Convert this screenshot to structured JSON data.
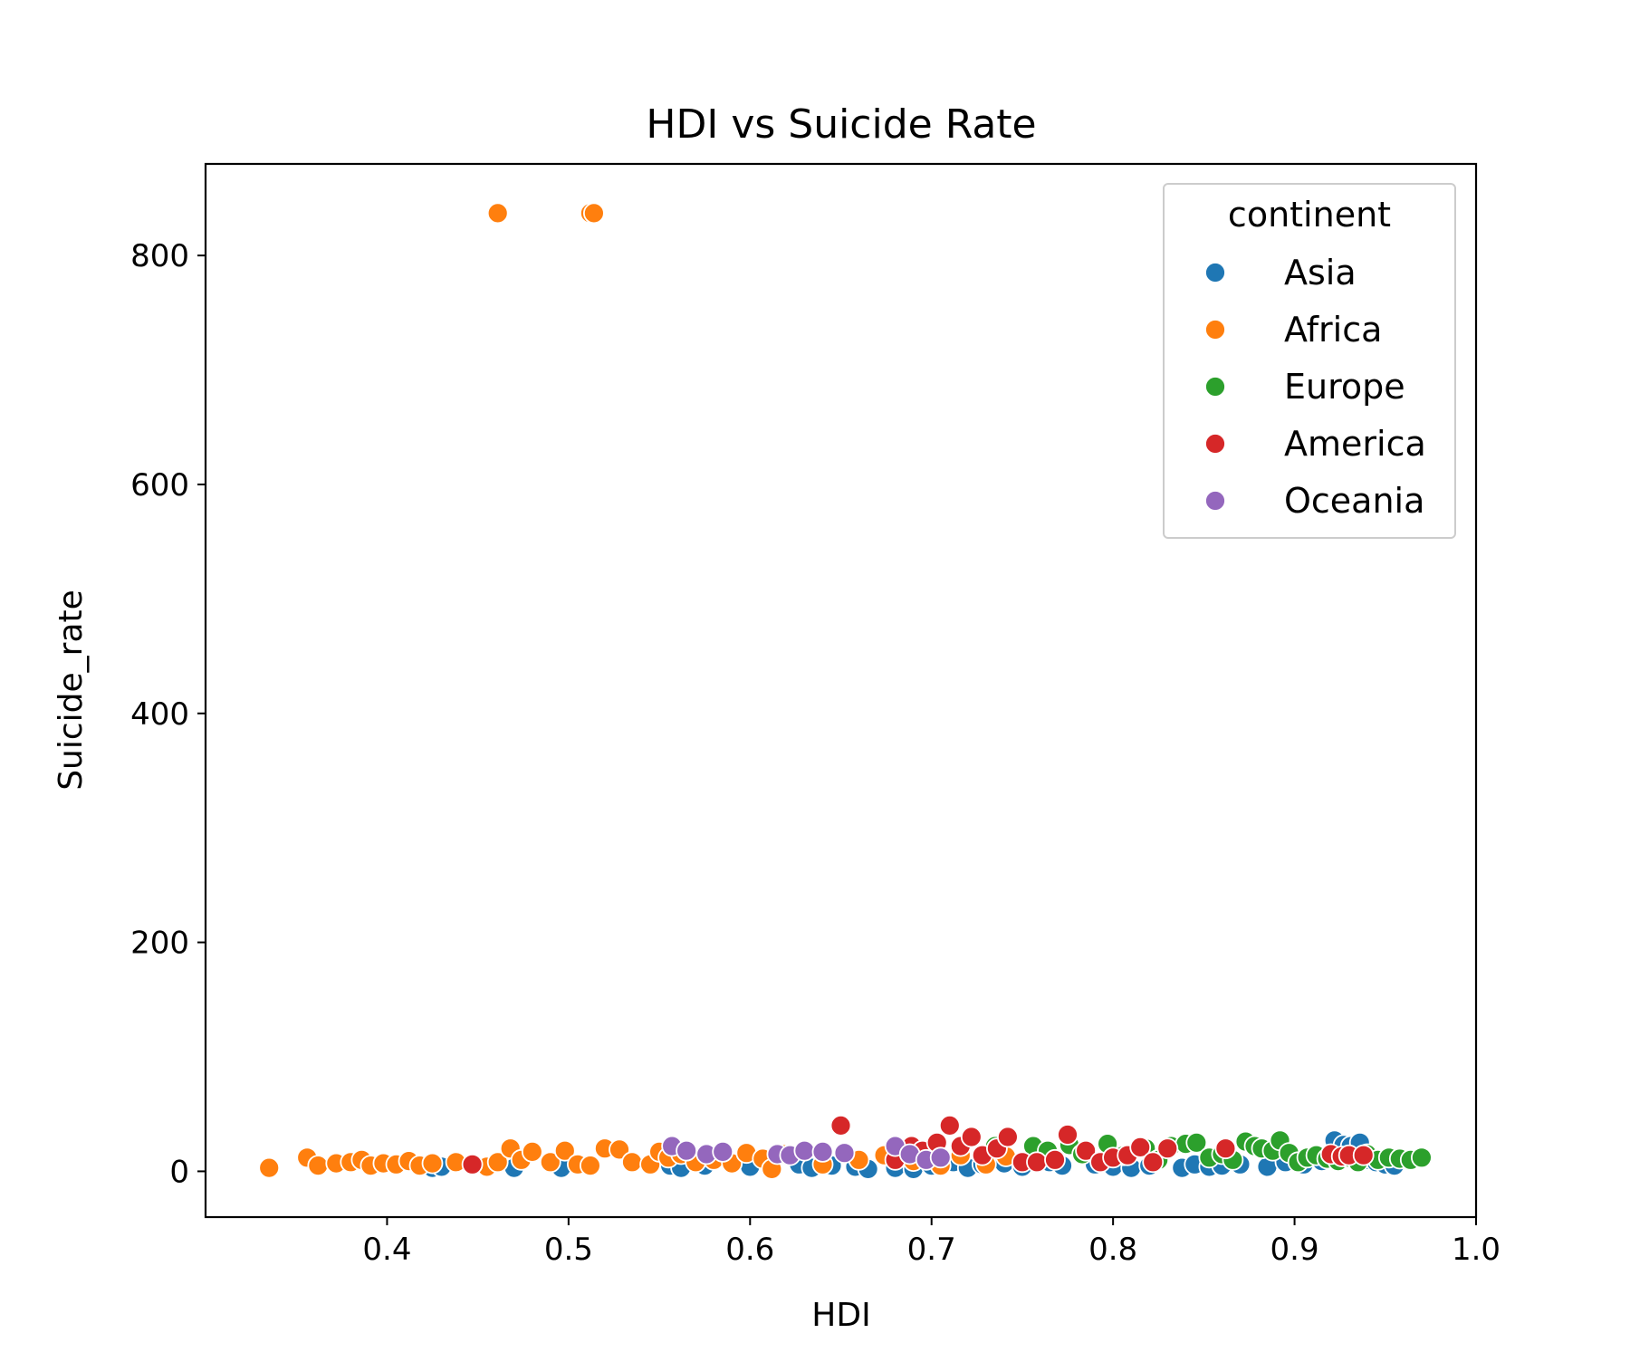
{
  "chart_data": {
    "type": "scatter",
    "title": "HDI vs Suicide Rate",
    "xlabel": "HDI",
    "ylabel": "Suicide_rate",
    "xlim": [
      0.3,
      1.0
    ],
    "ylim": [
      -40,
      880
    ],
    "xticks": [
      0.4,
      0.5,
      0.6,
      0.7,
      0.8,
      0.9,
      1.0
    ],
    "xtick_labels": [
      "0.4",
      "0.5",
      "0.6",
      "0.7",
      "0.8",
      "0.9",
      "1.0"
    ],
    "yticks": [
      0,
      200,
      400,
      600,
      800
    ],
    "ytick_labels": [
      "0",
      "200",
      "400",
      "600",
      "800"
    ],
    "grid": false,
    "legend": {
      "title": "continent",
      "placement": "top-right"
    },
    "series": [
      {
        "name": "Asia",
        "color": "#1f77b4",
        "points": [
          [
            0.425,
            3
          ],
          [
            0.43,
            4
          ],
          [
            0.47,
            3
          ],
          [
            0.496,
            3
          ],
          [
            0.556,
            5
          ],
          [
            0.562,
            3
          ],
          [
            0.575,
            5
          ],
          [
            0.6,
            4
          ],
          [
            0.627,
            6
          ],
          [
            0.634,
            3
          ],
          [
            0.645,
            5
          ],
          [
            0.658,
            4
          ],
          [
            0.665,
            2
          ],
          [
            0.68,
            3
          ],
          [
            0.69,
            2
          ],
          [
            0.7,
            5
          ],
          [
            0.712,
            8
          ],
          [
            0.72,
            3
          ],
          [
            0.728,
            6
          ],
          [
            0.74,
            7
          ],
          [
            0.75,
            4
          ],
          [
            0.765,
            8
          ],
          [
            0.772,
            5
          ],
          [
            0.79,
            6
          ],
          [
            0.8,
            4
          ],
          [
            0.81,
            3
          ],
          [
            0.82,
            5
          ],
          [
            0.838,
            3
          ],
          [
            0.845,
            6
          ],
          [
            0.853,
            4
          ],
          [
            0.86,
            5
          ],
          [
            0.87,
            6
          ],
          [
            0.885,
            4
          ],
          [
            0.895,
            8
          ],
          [
            0.905,
            6
          ],
          [
            0.915,
            9
          ],
          [
            0.922,
            27
          ],
          [
            0.927,
            23
          ],
          [
            0.931,
            22
          ],
          [
            0.936,
            25
          ],
          [
            0.94,
            10
          ],
          [
            0.945,
            8
          ],
          [
            0.95,
            6
          ],
          [
            0.955,
            5
          ]
        ]
      },
      {
        "name": "Africa",
        "color": "#ff7f0e",
        "points": [
          [
            0.461,
            837
          ],
          [
            0.512,
            837
          ],
          [
            0.514,
            837
          ],
          [
            0.335,
            3
          ],
          [
            0.356,
            12
          ],
          [
            0.362,
            5
          ],
          [
            0.372,
            7
          ],
          [
            0.38,
            8
          ],
          [
            0.386,
            10
          ],
          [
            0.391,
            5
          ],
          [
            0.398,
            7
          ],
          [
            0.405,
            6
          ],
          [
            0.412,
            9
          ],
          [
            0.418,
            5
          ],
          [
            0.425,
            7
          ],
          [
            0.438,
            8
          ],
          [
            0.448,
            6
          ],
          [
            0.455,
            4
          ],
          [
            0.461,
            8
          ],
          [
            0.468,
            20
          ],
          [
            0.474,
            10
          ],
          [
            0.48,
            17
          ],
          [
            0.49,
            8
          ],
          [
            0.498,
            18
          ],
          [
            0.505,
            6
          ],
          [
            0.512,
            5
          ],
          [
            0.52,
            20
          ],
          [
            0.528,
            19
          ],
          [
            0.535,
            8
          ],
          [
            0.545,
            6
          ],
          [
            0.55,
            17
          ],
          [
            0.555,
            12
          ],
          [
            0.562,
            15
          ],
          [
            0.57,
            8
          ],
          [
            0.58,
            10
          ],
          [
            0.59,
            7
          ],
          [
            0.598,
            16
          ],
          [
            0.607,
            11
          ],
          [
            0.612,
            2
          ],
          [
            0.618,
            15
          ],
          [
            0.64,
            6
          ],
          [
            0.66,
            10
          ],
          [
            0.674,
            14
          ],
          [
            0.69,
            9
          ],
          [
            0.705,
            5
          ],
          [
            0.716,
            14
          ],
          [
            0.73,
            6
          ],
          [
            0.741,
            13
          ]
        ]
      },
      {
        "name": "Europe",
        "color": "#2ca02c",
        "points": [
          [
            0.735,
            22
          ],
          [
            0.756,
            22
          ],
          [
            0.764,
            18
          ],
          [
            0.776,
            23
          ],
          [
            0.783,
            15
          ],
          [
            0.797,
            24
          ],
          [
            0.806,
            14
          ],
          [
            0.818,
            20
          ],
          [
            0.825,
            10
          ],
          [
            0.832,
            22
          ],
          [
            0.84,
            24
          ],
          [
            0.846,
            25
          ],
          [
            0.853,
            12
          ],
          [
            0.86,
            15
          ],
          [
            0.866,
            10
          ],
          [
            0.873,
            26
          ],
          [
            0.878,
            22
          ],
          [
            0.882,
            20
          ],
          [
            0.888,
            18
          ],
          [
            0.892,
            27
          ],
          [
            0.897,
            16
          ],
          [
            0.902,
            8
          ],
          [
            0.907,
            12
          ],
          [
            0.912,
            14
          ],
          [
            0.918,
            11
          ],
          [
            0.924,
            9
          ],
          [
            0.93,
            12
          ],
          [
            0.935,
            8
          ],
          [
            0.94,
            15
          ],
          [
            0.946,
            10
          ],
          [
            0.952,
            12
          ],
          [
            0.958,
            11
          ],
          [
            0.964,
            10
          ],
          [
            0.97,
            12
          ]
        ]
      },
      {
        "name": "America",
        "color": "#d62728",
        "points": [
          [
            0.447,
            6
          ],
          [
            0.65,
            40
          ],
          [
            0.68,
            10
          ],
          [
            0.689,
            22
          ],
          [
            0.695,
            18
          ],
          [
            0.703,
            25
          ],
          [
            0.71,
            40
          ],
          [
            0.716,
            22
          ],
          [
            0.722,
            30
          ],
          [
            0.728,
            14
          ],
          [
            0.736,
            20
          ],
          [
            0.742,
            30
          ],
          [
            0.75,
            8
          ],
          [
            0.758,
            8
          ],
          [
            0.768,
            10
          ],
          [
            0.775,
            32
          ],
          [
            0.785,
            18
          ],
          [
            0.793,
            8
          ],
          [
            0.8,
            12
          ],
          [
            0.808,
            14
          ],
          [
            0.815,
            21
          ],
          [
            0.822,
            8
          ],
          [
            0.83,
            20
          ],
          [
            0.862,
            20
          ],
          [
            0.92,
            15
          ],
          [
            0.926,
            13
          ],
          [
            0.93,
            14
          ],
          [
            0.938,
            14
          ]
        ]
      },
      {
        "name": "Oceania",
        "color": "#9467bd",
        "points": [
          [
            0.557,
            22
          ],
          [
            0.565,
            18
          ],
          [
            0.576,
            15
          ],
          [
            0.585,
            17
          ],
          [
            0.615,
            15
          ],
          [
            0.622,
            14
          ],
          [
            0.63,
            18
          ],
          [
            0.64,
            17
          ],
          [
            0.652,
            16
          ],
          [
            0.68,
            22
          ],
          [
            0.688,
            15
          ],
          [
            0.697,
            10
          ],
          [
            0.705,
            12
          ]
        ]
      }
    ]
  }
}
